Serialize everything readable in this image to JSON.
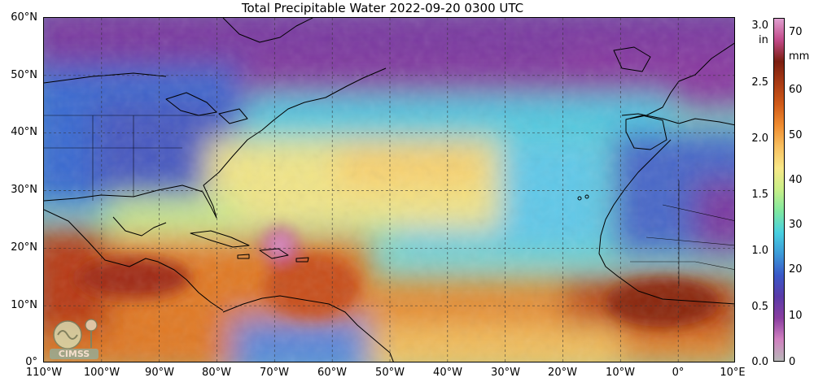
{
  "title": "Total Precipitable Water  2022-09-20 0300 UTC",
  "lat_labels": [
    "60°N",
    "50°N",
    "40°N",
    "30°N",
    "20°N",
    "10°N",
    "0°"
  ],
  "lon_labels": [
    "110°W",
    "100°W",
    "90°W",
    "80°W",
    "70°W",
    "60°W",
    "50°W",
    "40°W",
    "30°W",
    "20°W",
    "10°W",
    "0°",
    "10°E"
  ],
  "colorbar": {
    "left_unit": "in",
    "right_unit": "mm",
    "in_ticks": [
      "3.0",
      "2.5",
      "2.0",
      "1.5",
      "1.0",
      "0.5",
      "0.0"
    ],
    "mm_ticks": [
      "70",
      "60",
      "50",
      "40",
      "30",
      "20",
      "10",
      "0"
    ],
    "colors": [
      "#b8b8b8",
      "#d080c0",
      "#8a3ea0",
      "#5a3aa8",
      "#3a58c8",
      "#3c9ad8",
      "#48d0e0",
      "#80e8a0",
      "#c8ef88",
      "#f8e888",
      "#f8c060",
      "#ef8c30",
      "#d05a18",
      "#a83a14",
      "#7a1e10",
      "#c24a8a",
      "#e0a0d0"
    ]
  },
  "logo": {
    "text": "CIMSS"
  }
}
